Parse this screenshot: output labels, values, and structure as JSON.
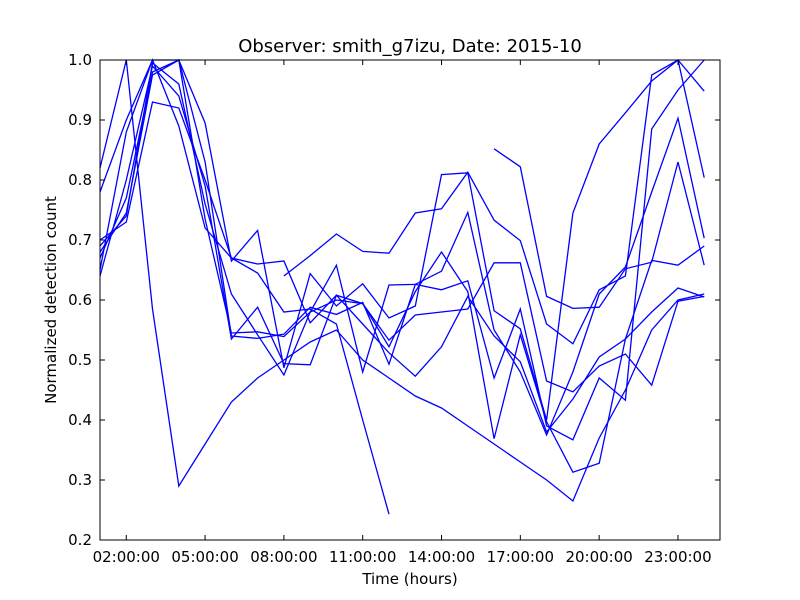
{
  "chart_data": {
    "type": "line",
    "title": "Observer: smith_g7izu, Date: 2015-10",
    "xlabel": "Time (hours)",
    "ylabel": "Normalized detection count",
    "xlim": [
      1,
      24.6
    ],
    "ylim": [
      0.2,
      1.0
    ],
    "x_ticks": [
      2,
      5,
      8,
      11,
      14,
      17,
      20,
      23
    ],
    "x_tick_labels": [
      "02:00:00",
      "05:00:00",
      "08:00:00",
      "11:00:00",
      "14:00:00",
      "17:00:00",
      "20:00:00",
      "23:00:00"
    ],
    "y_ticks": [
      0.2,
      0.3,
      0.4,
      0.5,
      0.6,
      0.7,
      0.8,
      0.9,
      1.0
    ],
    "y_tick_labels": [
      "0.2",
      "0.3",
      "0.4",
      "0.5",
      "0.6",
      "0.7",
      "0.8",
      "0.9",
      "1.0"
    ],
    "grid": false,
    "line_color": "#0000ff",
    "series": [
      {
        "x": [
          1,
          2,
          3,
          4,
          5,
          6,
          7,
          8,
          9,
          10,
          11,
          12,
          13,
          14,
          15,
          16,
          17,
          18,
          19,
          20,
          21,
          22,
          23,
          24
        ],
        "y": [
          0.82,
          1.0,
          0.585,
          0.29,
          0.36,
          0.43,
          0.47,
          0.5,
          0.53,
          0.55,
          0.5,
          0.47,
          0.44,
          0.42,
          0.39,
          0.36,
          0.33,
          0.3,
          0.265,
          0.37,
          0.45,
          0.55,
          0.6,
          0.61
        ]
      },
      {
        "x": [
          1,
          2,
          3,
          4,
          5,
          6,
          7,
          8,
          9,
          10,
          11,
          12
        ],
        "y": [
          0.7,
          0.73,
          0.93,
          0.92,
          0.8,
          0.67,
          0.645,
          0.58,
          0.585,
          0.56,
          0.4,
          0.243
        ]
      },
      {
        "x": [
          1,
          2,
          3,
          4,
          5,
          6,
          7,
          8,
          9,
          10,
          11,
          12,
          13,
          14,
          15,
          16,
          17,
          18,
          19,
          20,
          21,
          22,
          23,
          24
        ],
        "y": [
          0.65,
          0.88,
          1.0,
          0.89,
          0.72,
          0.67,
          0.66,
          0.665,
          0.562,
          0.608,
          0.56,
          0.512,
          0.473,
          0.522,
          0.606,
          0.54,
          0.497,
          0.38,
          0.435,
          0.505,
          0.535,
          0.58,
          0.62,
          0.605
        ]
      },
      {
        "x": [
          1,
          2,
          3,
          4,
          5,
          6,
          7,
          8,
          9,
          10,
          11,
          12,
          13,
          14,
          15,
          16,
          17,
          18,
          19,
          20,
          21,
          22,
          23,
          24
        ],
        "y": [
          0.78,
          0.9,
          1.0,
          1.0,
          0.83,
          0.54,
          0.536,
          0.543,
          0.588,
          0.576,
          0.596,
          0.493,
          0.626,
          0.617,
          0.632,
          0.47,
          0.585,
          0.39,
          0.367,
          0.47,
          0.433,
          0.885,
          0.95,
          1.0
        ]
      },
      {
        "x": [
          1,
          2,
          3,
          4,
          5,
          6,
          7,
          8,
          9,
          10,
          11,
          12,
          13,
          14,
          15,
          16,
          17,
          18,
          19,
          20,
          21,
          22,
          23,
          24
        ],
        "y": [
          0.69,
          0.74,
          0.995,
          0.96,
          0.76,
          0.61,
          0.542,
          0.475,
          0.58,
          0.658,
          0.48,
          0.625,
          0.626,
          0.648,
          0.746,
          0.55,
          0.48,
          0.375,
          0.48,
          0.61,
          0.655,
          0.78,
          0.903,
          0.703
        ]
      },
      {
        "x": [
          1,
          2,
          3,
          4,
          5,
          6,
          7,
          8,
          9,
          10,
          11,
          12,
          13,
          14,
          15,
          16,
          17,
          18,
          19,
          20,
          21,
          22,
          23,
          24
        ],
        "y": [
          0.64,
          0.8,
          0.99,
          0.94,
          0.79,
          0.535,
          0.588,
          0.494,
          0.492,
          0.608,
          0.594,
          0.522,
          0.614,
          0.68,
          0.614,
          0.369,
          0.542,
          0.397,
          0.313,
          0.328,
          0.535,
          0.666,
          0.658,
          0.69
        ]
      },
      {
        "x": [
          1,
          2,
          3,
          4,
          5,
          6,
          7,
          8,
          9,
          10,
          11,
          12,
          13,
          14,
          15,
          16,
          17,
          18,
          19,
          20,
          21,
          22,
          23,
          24
        ],
        "y": [
          0.67,
          0.77,
          0.98,
          1.0,
          0.895,
          0.665,
          0.716,
          0.487,
          0.644,
          0.59,
          0.627,
          0.57,
          0.59,
          0.809,
          0.812,
          0.582,
          0.552,
          0.4,
          0.745,
          0.86,
          0.912,
          0.965,
          1.0,
          0.948
        ]
      },
      {
        "x": [
          8,
          9,
          10,
          11,
          12,
          13,
          14,
          15,
          16,
          17,
          18,
          19,
          20,
          21,
          22,
          23,
          24
        ],
        "y": [
          0.64,
          0.674,
          0.71,
          0.681,
          0.678,
          0.745,
          0.752,
          0.813,
          0.733,
          0.699,
          0.56,
          0.527,
          0.617,
          0.64,
          0.975,
          1.0,
          0.804
        ]
      },
      {
        "x": [
          16,
          17,
          18,
          19,
          20,
          21,
          22,
          23,
          24
        ],
        "y": [
          0.852,
          0.822,
          0.606,
          0.586,
          0.588,
          0.652,
          0.663,
          0.83,
          0.658
        ]
      },
      {
        "x": [
          1,
          2,
          3,
          4,
          5,
          6,
          7,
          8,
          9,
          10,
          11,
          12,
          13,
          14,
          15,
          16,
          17,
          18,
          19,
          20,
          21,
          22,
          23,
          24
        ],
        "y": [
          0.68,
          0.745,
          0.975,
          1.0,
          0.735,
          0.545,
          0.547,
          0.539,
          0.58,
          0.6,
          0.594,
          0.533,
          0.575,
          0.58,
          0.585,
          0.662,
          0.662,
          0.465,
          0.447,
          0.49,
          0.51,
          0.458,
          0.598,
          0.606
        ]
      }
    ]
  }
}
